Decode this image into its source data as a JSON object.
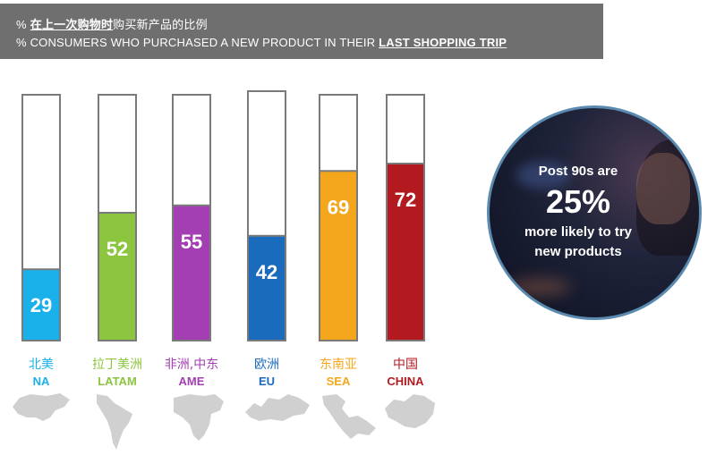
{
  "header": {
    "title_prefix": "%",
    "title_bold": "在上一次购物时",
    "title_rest": "购买新产品的比例",
    "subtitle_main": "% CONSUMERS WHO PURCHASED A NEW PRODUCT IN THEIR",
    "subtitle_bold": "LAST SHOPPING TRIP"
  },
  "chart_data": {
    "type": "bar",
    "categories": [
      "NA",
      "LATAM",
      "AME",
      "EU",
      "SEA",
      "CHINA"
    ],
    "categories_zh": [
      "北美",
      "拉丁美洲",
      "非洲,中东",
      "欧洲",
      "东南亚",
      "中国"
    ],
    "values": [
      29,
      52,
      55,
      42,
      69,
      72
    ],
    "ylim": [
      0,
      100
    ],
    "colors": [
      "#1ab0ea",
      "#8cc63f",
      "#a33fb2",
      "#1b6bbd",
      "#f4a71d",
      "#b31a20"
    ],
    "grid": false,
    "legend": "none",
    "title": "",
    "xlabel": "",
    "ylabel": ""
  },
  "callout": {
    "line1": "Post 90s are",
    "big": "25%",
    "line3": "more likely to try",
    "line4": "new products"
  },
  "maps": [
    "north-america-map-icon",
    "latin-america-map-icon",
    "africa-middle-east-map-icon",
    "europe-map-icon",
    "southeast-asia-map-icon",
    "china-map-icon"
  ]
}
